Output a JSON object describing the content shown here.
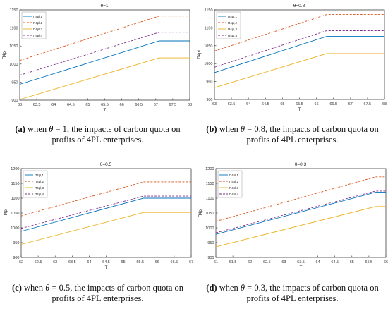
{
  "colors": {
    "s1": "#0072bd",
    "s2": "#d95319",
    "s3": "#edb120",
    "s4": "#7e2f8e"
  },
  "captions": [
    {
      "label": "(a)",
      "pre": " when ",
      "theta": "θ",
      "post": " = 1, the impacts of carbon quota on profits of 4PL enterprises."
    },
    {
      "label": "(b)",
      "pre": " when ",
      "theta": "θ",
      "post": " = 0.8, the impacts of carbon quota on profits of 4PL enterprises."
    },
    {
      "label": "(c)",
      "pre": " when ",
      "theta": "θ",
      "post": " = 0.5, the impacts of carbon quota on profits of 4PL enterprises."
    },
    {
      "label": "(d)",
      "pre": " when ",
      "theta": "θ",
      "post": " = 0.3, the impacts of carbon quota on profits of 4PL enterprises."
    }
  ],
  "chart_data": [
    {
      "type": "line",
      "title": "θ=1",
      "xlabel": "T",
      "ylabel": "Π4pl",
      "xlim": [
        63,
        68
      ],
      "ylim": [
        900,
        1150
      ],
      "xticks": [
        "63",
        "63.5",
        "64",
        "64.5",
        "65",
        "65.5",
        "66",
        "66.5",
        "67",
        "67.5",
        "68"
      ],
      "yticks": [
        "900",
        "950",
        "1000",
        "1050",
        "1100",
        "1150"
      ],
      "legend_position": "top-left",
      "series": [
        {
          "name": "Π4pl,1",
          "style": "solid",
          "color_key": "s1",
          "points": [
            [
              63,
              944
            ],
            [
              67.1,
              1064
            ],
            [
              68,
              1064
            ]
          ]
        },
        {
          "name": "Π4pl,2",
          "style": "dashed",
          "color_key": "s2",
          "points": [
            [
              63,
              1010
            ],
            [
              67.1,
              1133
            ],
            [
              68,
              1133
            ]
          ]
        },
        {
          "name": "Π4pl,3",
          "style": "solid",
          "color_key": "s3",
          "points": [
            [
              63,
              902
            ],
            [
              67.1,
              1017
            ],
            [
              68,
              1017
            ]
          ]
        },
        {
          "name": "Π4pl,4",
          "style": "dashed",
          "color_key": "s4",
          "points": [
            [
              63,
              969
            ],
            [
              67.1,
              1088
            ],
            [
              68,
              1088
            ]
          ]
        }
      ]
    },
    {
      "type": "line",
      "title": "θ=0.8",
      "xlabel": "T",
      "ylabel": "Π4pl",
      "xlim": [
        63,
        68
      ],
      "ylim": [
        900,
        1150
      ],
      "xticks": [
        "63",
        "63.5",
        "64",
        "64.5",
        "65",
        "65.5",
        "66",
        "66.5",
        "67",
        "67.5",
        "68"
      ],
      "yticks": [
        "900",
        "950",
        "1000",
        "1050",
        "1100",
        "1150"
      ],
      "legend_position": "top-left",
      "series": [
        {
          "name": "Π4pl,1",
          "style": "solid",
          "color_key": "s1",
          "points": [
            [
              63,
              975
            ],
            [
              66.3,
              1076
            ],
            [
              68,
              1076
            ]
          ]
        },
        {
          "name": "Π4pl,2",
          "style": "dashed",
          "color_key": "s2",
          "points": [
            [
              63,
              1035
            ],
            [
              66.3,
              1137
            ],
            [
              68,
              1137
            ]
          ]
        },
        {
          "name": "Π4pl,3",
          "style": "solid",
          "color_key": "s3",
          "points": [
            [
              63,
              933
            ],
            [
              66.3,
              1028
            ],
            [
              68,
              1028
            ]
          ]
        },
        {
          "name": "Π4pl,4",
          "style": "dashed",
          "color_key": "s4",
          "points": [
            [
              63,
              990
            ],
            [
              66.3,
              1092
            ],
            [
              68,
              1092
            ]
          ]
        }
      ]
    },
    {
      "type": "line",
      "title": "θ=0.5",
      "xlabel": "T",
      "ylabel": "Π4pl",
      "xlim": [
        62,
        67
      ],
      "ylim": [
        900,
        1200
      ],
      "xticks": [
        "62",
        "62.5",
        "63",
        "63.5",
        "64",
        "64.5",
        "65",
        "65.5",
        "66",
        "66.5",
        "67"
      ],
      "yticks": [
        "900",
        "950",
        "1000",
        "1050",
        "1100",
        "1150",
        "1200"
      ],
      "legend_position": "top-left",
      "series": [
        {
          "name": "Π4pl,1",
          "style": "solid",
          "color_key": "s1",
          "points": [
            [
              62,
              988
            ],
            [
              65.6,
              1100
            ],
            [
              67,
              1100
            ]
          ]
        },
        {
          "name": "Π4pl,2",
          "style": "dashed",
          "color_key": "s2",
          "points": [
            [
              62,
              1040
            ],
            [
              65.6,
              1155
            ],
            [
              67,
              1155
            ]
          ]
        },
        {
          "name": "Π4pl,3",
          "style": "solid",
          "color_key": "s3",
          "points": [
            [
              62,
              944
            ],
            [
              65.6,
              1052
            ],
            [
              67,
              1052
            ]
          ]
        },
        {
          "name": "Π4pl,4",
          "style": "dashed",
          "color_key": "s4",
          "points": [
            [
              62,
              998
            ],
            [
              65.6,
              1107
            ],
            [
              67,
              1107
            ]
          ]
        }
      ]
    },
    {
      "type": "line",
      "title": "θ=0.3",
      "xlabel": "T",
      "ylabel": "Π4pl",
      "xlim": [
        61,
        66
      ],
      "ylim": [
        900,
        1200
      ],
      "xticks": [
        "61",
        "61.5",
        "62",
        "62.5",
        "63",
        "63.5",
        "64",
        "64.5",
        "65",
        "65.5",
        "66"
      ],
      "yticks": [
        "900",
        "950",
        "1000",
        "1050",
        "1100",
        "1150",
        "1200"
      ],
      "legend_position": "top-left",
      "series": [
        {
          "name": "Π4pl,1",
          "style": "solid",
          "color_key": "s1",
          "points": [
            [
              61,
              978
            ],
            [
              65.7,
              1120
            ],
            [
              66,
              1120
            ]
          ]
        },
        {
          "name": "Π4pl,2",
          "style": "dashed",
          "color_key": "s2",
          "points": [
            [
              61,
              1022
            ],
            [
              65.7,
              1172
            ],
            [
              66,
              1172
            ]
          ]
        },
        {
          "name": "Π4pl,3",
          "style": "solid",
          "color_key": "s3",
          "points": [
            [
              61,
              936
            ],
            [
              65.7,
              1072
            ],
            [
              66,
              1072
            ]
          ]
        },
        {
          "name": "Π4pl,4",
          "style": "dashed",
          "color_key": "s4",
          "points": [
            [
              61,
              983
            ],
            [
              65.7,
              1124
            ],
            [
              66,
              1124
            ]
          ]
        }
      ]
    }
  ]
}
